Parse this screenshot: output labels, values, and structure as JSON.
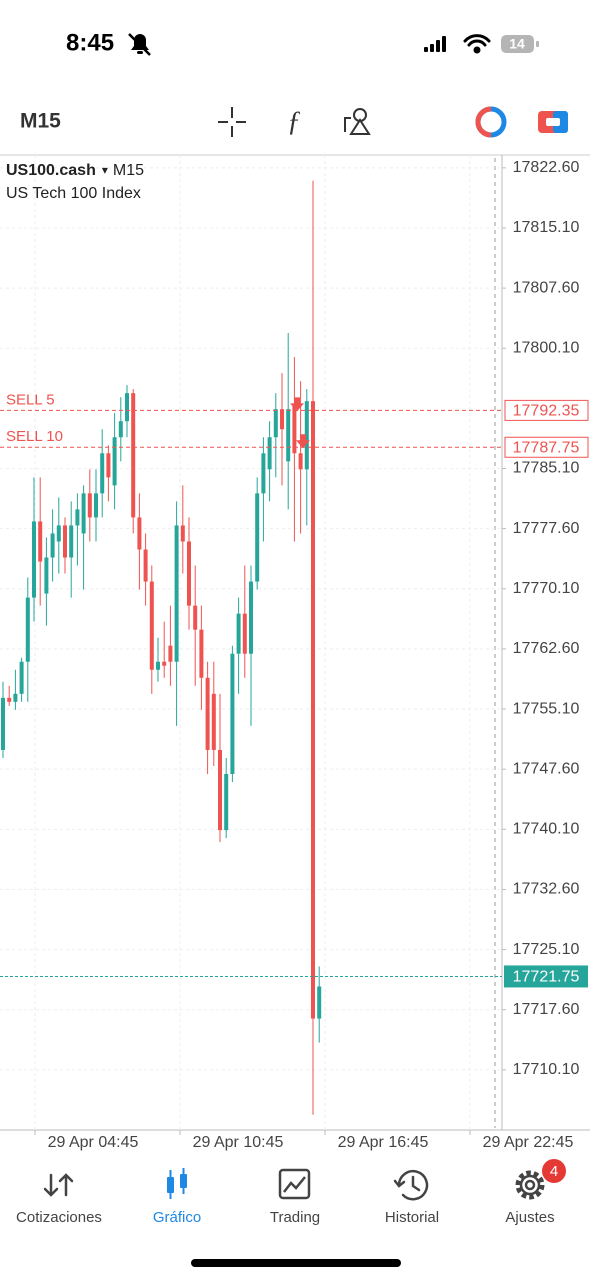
{
  "status_bar": {
    "time": "8:45",
    "battery": "14"
  },
  "toolbar": {
    "timeframe": "M15"
  },
  "chart_data": {
    "type": "candlestick",
    "symbol": "US100.cash",
    "symbol_arrow": "▾",
    "timeframe": "M15",
    "description": "US Tech 100 Index",
    "up_color": "#26a69a",
    "down_color": "#ef5350",
    "grid": true,
    "open": [
      17750,
      17756.5,
      17756,
      17757,
      17761,
      17769,
      17778.5,
      17769.5,
      17774,
      17776,
      17778,
      17774,
      17778,
      17777,
      17782,
      17779,
      17782,
      17787,
      17783,
      17789,
      17791,
      17794.5,
      17779,
      17775,
      17771,
      17760,
      17761,
      17763,
      17761,
      17778,
      17776,
      17768,
      17765,
      17759,
      17757,
      17750,
      17740,
      17747,
      17762,
      17767,
      17762,
      17771,
      17782,
      17785,
      17789,
      17792.5,
      17786,
      17793,
      17787,
      17785,
      17793.5,
      17716.5
    ],
    "high": [
      17758.5,
      17758,
      17760,
      17761.5,
      17771.5,
      17784,
      17784,
      17776.5,
      17780,
      17781.5,
      17779,
      17781,
      17782,
      17783,
      17785,
      17785,
      17790,
      17788,
      17792,
      17794,
      17795.5,
      17795,
      17782,
      17777,
      17773,
      17764,
      17766,
      17768,
      17781,
      17783,
      17779,
      17773,
      17768,
      17761,
      17761,
      17757,
      17749,
      17763,
      17769,
      17773,
      17773,
      17784,
      17789,
      17791,
      17794.5,
      17797,
      17802,
      17799,
      17796,
      17795,
      17821,
      17723
    ],
    "low": [
      17749,
      17755.5,
      17755,
      17756,
      17756,
      17766,
      17768,
      17765.5,
      17771,
      17772,
      17772,
      17769,
      17773,
      17770,
      17776,
      17776,
      17779,
      17781,
      17780,
      17786,
      17789,
      17777,
      17770,
      17768,
      17757,
      17758.5,
      17759,
      17758,
      17753,
      17772,
      17765,
      17758,
      17755,
      17747,
      17748,
      17738.5,
      17739,
      17746,
      17757,
      17759,
      17753,
      17770,
      17776,
      17781,
      17784,
      17783,
      17780,
      17776,
      17777,
      17778,
      17704.5,
      17713.5
    ],
    "close": [
      17756.5,
      17756,
      17757,
      17761,
      17769,
      17778.5,
      17773.5,
      17774,
      17777,
      17778,
      17774,
      17778,
      17780,
      17782,
      17779,
      17782,
      17787,
      17784,
      17789,
      17791,
      17794.5,
      17779,
      17775,
      17771,
      17760,
      17761,
      17760.5,
      17761,
      17778,
      17776,
      17768,
      17765,
      17759,
      17750,
      17750,
      17740,
      17747,
      17762,
      17767,
      17762,
      17771,
      17782,
      17787,
      17789,
      17792.5,
      17790,
      17792.5,
      17787,
      17785,
      17793.5,
      17716.5,
      17720.5
    ],
    "ylim": [
      17702.6,
      17824.2
    ],
    "yticks": [
      {
        "value": 17822.6,
        "label": "17822.60"
      },
      {
        "value": 17815.1,
        "label": "17815.10"
      },
      {
        "value": 17807.6,
        "label": "17807.60"
      },
      {
        "value": 17800.1,
        "label": "17800.10"
      },
      {
        "value": 17785.1,
        "label": "17785.10"
      },
      {
        "value": 17777.6,
        "label": "17777.60"
      },
      {
        "value": 17770.1,
        "label": "17770.10"
      },
      {
        "value": 17762.6,
        "label": "17762.60"
      },
      {
        "value": 17755.1,
        "label": "17755.10"
      },
      {
        "value": 17747.6,
        "label": "17747.60"
      },
      {
        "value": 17740.1,
        "label": "17740.10"
      },
      {
        "value": 17732.6,
        "label": "17732.60"
      },
      {
        "value": 17725.1,
        "label": "17725.10"
      },
      {
        "value": 17717.6,
        "label": "17717.60"
      },
      {
        "value": 17710.1,
        "label": "17710.10"
      }
    ],
    "xtick_labels": [
      "29 Apr 04:45",
      "29 Apr 10:45",
      "29 Apr 16:45",
      "29 Apr 22:45"
    ],
    "orders": [
      {
        "label": "SELL 5",
        "price": 17792.35,
        "color": "#ef5350"
      },
      {
        "label": "SELL 10",
        "price": 17787.75,
        "color": "#ef5350"
      }
    ],
    "bid": {
      "price": 17721.75,
      "color": "#26a69a"
    }
  },
  "tabs": [
    {
      "label": "Cotizaciones"
    },
    {
      "label": "Gráfico",
      "active": true
    },
    {
      "label": "Trading"
    },
    {
      "label": "Historial"
    },
    {
      "label": "Ajustes",
      "badge": 4
    }
  ]
}
